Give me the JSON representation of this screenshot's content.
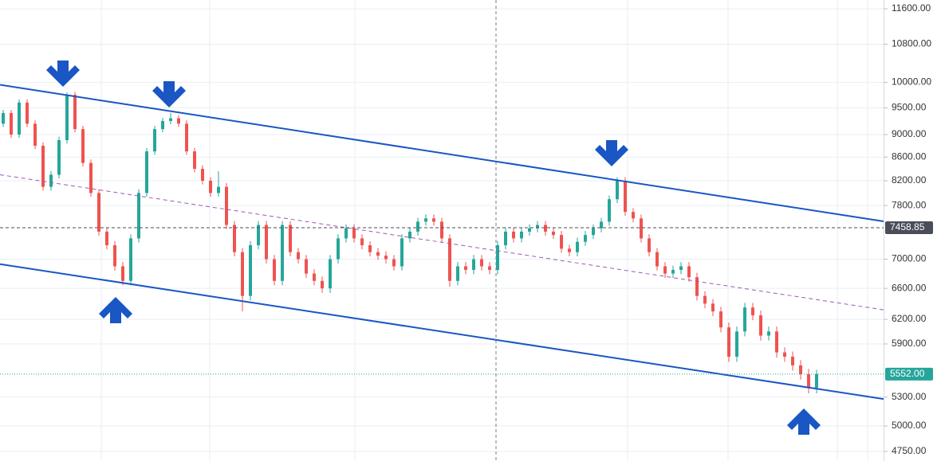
{
  "chart_data": {
    "type": "candlestick",
    "scale": "log",
    "ylim": [
      4659,
      11807
    ],
    "yticks": [
      {
        "value": 11600,
        "label": "11600.00"
      },
      {
        "value": 10800,
        "label": "10800.00"
      },
      {
        "value": 10000,
        "label": "10000.00"
      },
      {
        "value": 9500,
        "label": "9500.00"
      },
      {
        "value": 9000,
        "label": "9000.00"
      },
      {
        "value": 8600,
        "label": "8600.00"
      },
      {
        "value": 8200,
        "label": "8200.00"
      },
      {
        "value": 7800,
        "label": "7800.00"
      },
      {
        "value": 7000,
        "label": "7000.00"
      },
      {
        "value": 6600,
        "label": "6600.00"
      },
      {
        "value": 6200,
        "label": "6200.00"
      },
      {
        "value": 5900,
        "label": "5900.00"
      },
      {
        "value": 5300,
        "label": "5300.00"
      },
      {
        "value": 5000,
        "label": "5000.00"
      },
      {
        "value": 4750,
        "label": "4750.00"
      }
    ],
    "grid": true,
    "up_color": "#26a69a",
    "down_color": "#ef5350",
    "open": [
      9200,
      9400,
      9000,
      9600,
      9200,
      8800,
      8100,
      8300,
      8900,
      9750,
      9100,
      8500,
      8000,
      7400,
      7200,
      6900,
      6700,
      7300,
      8000,
      8700,
      9100,
      9250,
      9300,
      9200,
      8700,
      8400,
      8200,
      8000,
      8100,
      7500,
      7100,
      6500,
      7200,
      7500,
      7000,
      6700,
      7500,
      7100,
      7000,
      6800,
      6700,
      6600,
      7000,
      7300,
      7450,
      7300,
      7200,
      7100,
      7050,
      7000,
      6900,
      7300,
      7400,
      7550,
      7600,
      7550,
      7300,
      6700,
      6900,
      6850,
      7000,
      6900,
      6850,
      7200,
      7400,
      7300,
      7400,
      7450,
      7500,
      7400,
      7350,
      7150,
      7100,
      7250,
      7350,
      7450,
      7550,
      7900,
      8200,
      7700,
      7600,
      7300,
      7100,
      6900,
      6800,
      6850,
      6900,
      6750,
      6500,
      6400,
      6300,
      6100,
      5750,
      6050,
      6350,
      6250,
      6000,
      6050,
      5800,
      5750,
      5650,
      5550,
      5400
    ],
    "high": [
      9460,
      9460,
      9660,
      9660,
      9260,
      8860,
      8360,
      8960,
      9800,
      9810,
      9160,
      8560,
      8060,
      7460,
      7260,
      6960,
      7360,
      8060,
      8760,
      9160,
      9310,
      9400,
      9360,
      9260,
      8760,
      8460,
      8260,
      8360,
      8160,
      7560,
      7160,
      7260,
      7560,
      7560,
      7060,
      7560,
      7560,
      7160,
      7060,
      6860,
      6760,
      7060,
      7360,
      7510,
      7510,
      7360,
      7260,
      7160,
      7110,
      7060,
      7360,
      7460,
      7610,
      7660,
      7660,
      7610,
      7360,
      6960,
      6960,
      7060,
      7060,
      6960,
      7260,
      7460,
      7460,
      7460,
      7510,
      7560,
      7560,
      7460,
      7410,
      7210,
      7310,
      7410,
      7510,
      7610,
      7960,
      8260,
      8260,
      7760,
      7660,
      7360,
      7160,
      6960,
      6910,
      6960,
      6960,
      6810,
      6560,
      6460,
      6360,
      6160,
      6110,
      6410,
      6410,
      6310,
      6110,
      6110,
      5860,
      5810,
      5710,
      5610,
      5600
    ],
    "low": [
      9140,
      8940,
      8940,
      9140,
      8740,
      8040,
      8040,
      8240,
      8840,
      9040,
      8440,
      7940,
      7340,
      7140,
      6840,
      6640,
      6640,
      7240,
      7940,
      8640,
      9040,
      9190,
      9140,
      8640,
      8340,
      8140,
      7940,
      7940,
      7440,
      7040,
      6300,
      6440,
      7140,
      6940,
      6640,
      6640,
      7040,
      6940,
      6740,
      6640,
      6540,
      6540,
      6940,
      7240,
      7240,
      7140,
      7040,
      6990,
      6940,
      6840,
      6840,
      7240,
      7340,
      7490,
      7490,
      7240,
      6620,
      6640,
      6790,
      6790,
      6840,
      6790,
      6790,
      7140,
      7240,
      7240,
      7340,
      7390,
      7340,
      7290,
      7090,
      7040,
      7040,
      7190,
      7290,
      7390,
      7490,
      7840,
      7640,
      7540,
      7240,
      7040,
      6840,
      6740,
      6740,
      6790,
      6690,
      6440,
      6340,
      6240,
      6040,
      5690,
      5690,
      5990,
      6190,
      5940,
      5940,
      5740,
      5690,
      5590,
      5490,
      5340,
      5340
    ],
    "close": [
      9400,
      9000,
      9600,
      9200,
      8800,
      8100,
      8300,
      8900,
      9750,
      9100,
      8500,
      8000,
      7400,
      7200,
      6900,
      6700,
      7300,
      8000,
      8700,
      9100,
      9250,
      9300,
      9200,
      8700,
      8400,
      8200,
      8000,
      8100,
      7500,
      7100,
      6500,
      7200,
      7500,
      7000,
      6700,
      7500,
      7100,
      7000,
      6800,
      6700,
      6600,
      7000,
      7300,
      7450,
      7300,
      7200,
      7100,
      7050,
      7000,
      6900,
      7300,
      7400,
      7550,
      7600,
      7550,
      7300,
      6700,
      6900,
      6850,
      7000,
      6900,
      6850,
      7200,
      7400,
      7300,
      7400,
      7450,
      7500,
      7400,
      7350,
      7150,
      7100,
      7250,
      7350,
      7450,
      7550,
      7900,
      8200,
      7700,
      7600,
      7300,
      7100,
      6900,
      6800,
      6850,
      6900,
      6750,
      6500,
      6400,
      6300,
      6100,
      5750,
      6050,
      6350,
      6250,
      6000,
      6050,
      5800,
      5750,
      5650,
      5550,
      5400,
      5552
    ],
    "trend_lines": [
      {
        "start": 9950,
        "end": 7555,
        "color": "#1a56c4",
        "style": "solid"
      },
      {
        "start": 6930,
        "end": 5280,
        "color": "#1a56c4",
        "style": "solid"
      },
      {
        "start": 8300,
        "end": 6320,
        "color": "#9b59b6",
        "style": "dashed"
      }
    ],
    "price_lines": [
      {
        "value": 7458.85,
        "color": "#4a4e59",
        "style": "dashed"
      },
      {
        "value": 5552,
        "label": "5552.00",
        "color": "#26a69a",
        "style": "dotted"
      }
    ]
  }
}
